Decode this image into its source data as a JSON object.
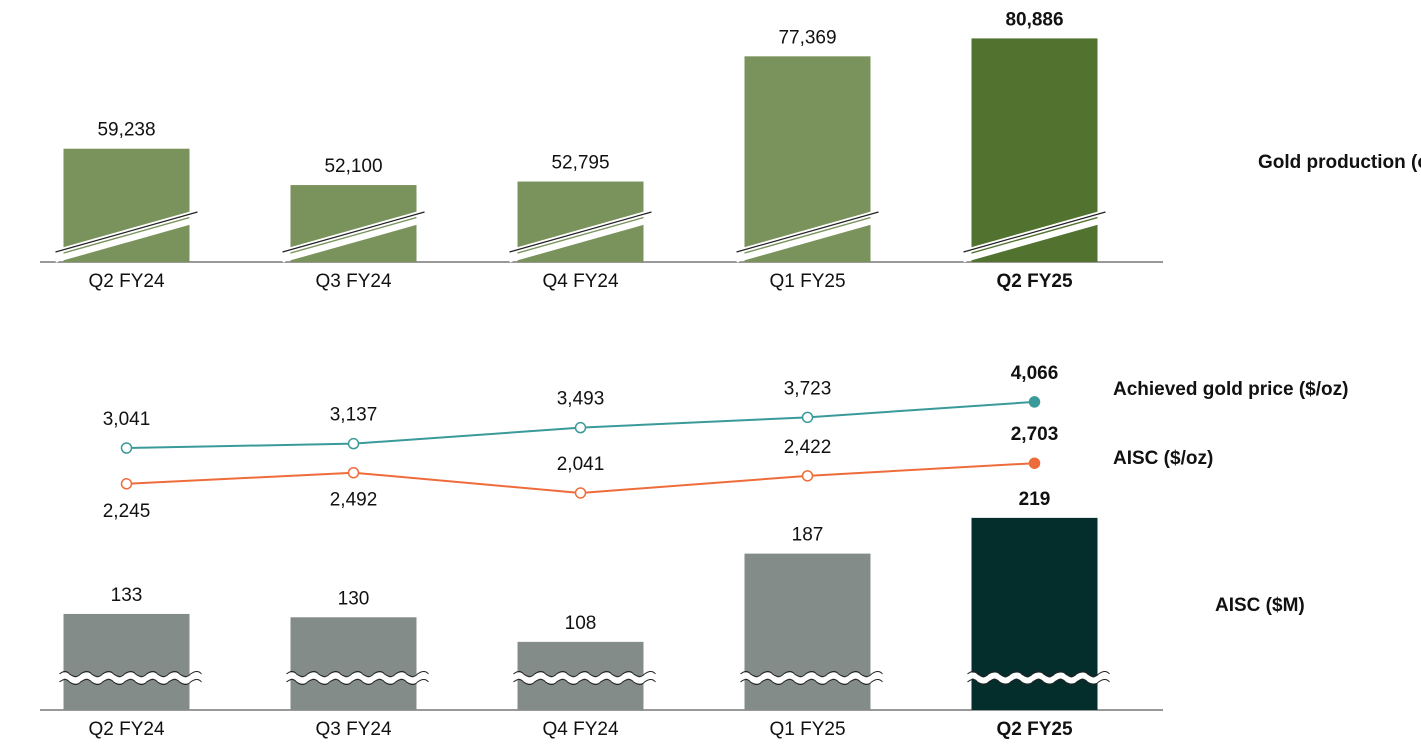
{
  "chart_data": [
    {
      "type": "bar",
      "name": "Gold production (oz)",
      "name_color": "#52722f",
      "categories": [
        "Q2 FY24",
        "Q3 FY24",
        "Q4 FY24",
        "Q1 FY25",
        "Q2 FY25"
      ],
      "values": [
        59238,
        52100,
        52795,
        77369,
        80886
      ],
      "value_labels": [
        "59,238",
        "52,100",
        "52,795",
        "77,369",
        "80,886"
      ],
      "colors": [
        "#7a935c",
        "#7a935c",
        "#7a935c",
        "#7a935c",
        "#52722f"
      ],
      "ylim": [
        37000,
        84500
      ],
      "axis_break": "diagonal",
      "highlight_index": 4
    },
    {
      "type": "line",
      "series": [
        {
          "name": "Achieved gold price ($/oz)",
          "color": "#3a9a9a",
          "values": [
            3041,
            3137,
            3493,
            3723,
            4066
          ],
          "value_labels": [
            "3,041",
            "3,137",
            "3,493",
            "3,723",
            "4,066"
          ]
        },
        {
          "name": "AISC ($/oz)",
          "color": "#ee6c3a",
          "values": [
            2245,
            2492,
            2041,
            2422,
            2703
          ],
          "value_labels": [
            "2,245",
            "2,492",
            "2,041",
            "2,422",
            "2,703"
          ]
        }
      ],
      "ylim": [
        1885,
        4775
      ],
      "highlight_index": 4
    },
    {
      "type": "bar",
      "name": "AISC ($M)",
      "name_color": "#042e2c",
      "categories": [
        "Q2 FY24",
        "Q3 FY24",
        "Q4 FY24",
        "Q1 FY25",
        "Q2 FY25"
      ],
      "values": [
        133,
        130,
        108,
        187,
        219
      ],
      "colors": [
        "#848c89",
        "#848c89",
        "#848c89",
        "#848c89",
        "#042e2c"
      ],
      "ylim": [
        47,
        235
      ],
      "axis_break": "wave",
      "highlight_index": 4
    }
  ]
}
